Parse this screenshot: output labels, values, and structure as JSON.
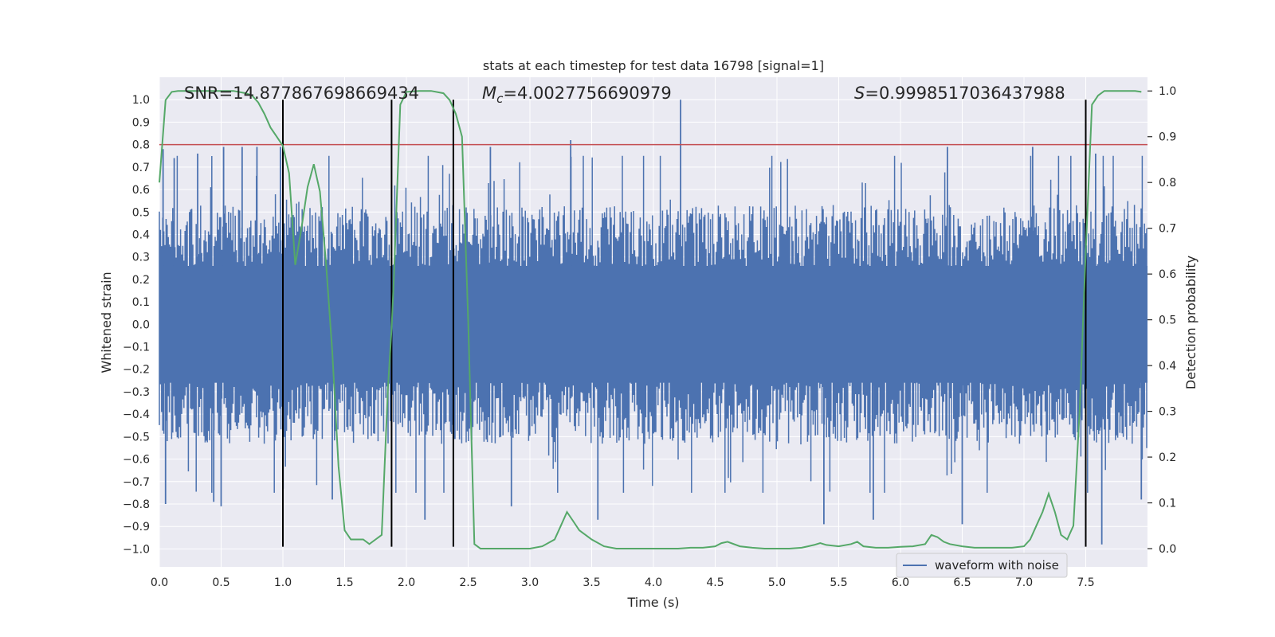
{
  "chart_data": {
    "type": "line",
    "title": "stats at each timestep for test data 16798 [signal=1]",
    "xlabel": "Time (s)",
    "ylabel": "Whitened strain",
    "y2label": "Detection probability",
    "xlim": [
      0.0,
      8.0
    ],
    "ylim": [
      -1.08,
      1.1
    ],
    "y2lim": [
      -0.04,
      1.03
    ],
    "xticks": [
      0.0,
      0.5,
      1.0,
      1.5,
      2.0,
      2.5,
      3.0,
      3.5,
      4.0,
      4.5,
      5.0,
      5.5,
      6.0,
      6.5,
      7.0,
      7.5
    ],
    "xtick_labels": [
      "0.0",
      "0.5",
      "1.0",
      "1.5",
      "2.0",
      "2.5",
      "3.0",
      "3.5",
      "4.0",
      "4.5",
      "5.0",
      "5.5",
      "6.0",
      "6.5",
      "7.0",
      "7.5"
    ],
    "yticks": [
      1.0,
      0.9,
      0.8,
      0.7,
      0.6,
      0.5,
      0.4,
      0.3,
      0.2,
      0.1,
      0.0,
      -0.1,
      -0.2,
      -0.3,
      -0.4,
      -0.5,
      -0.6,
      -0.7,
      -0.8,
      -0.9,
      -1.0
    ],
    "ytick_labels": [
      "1.0",
      "0.9",
      "0.8",
      "0.7",
      "0.6",
      "0.5",
      "0.4",
      "0.3",
      "0.2",
      "0.1",
      "0.0",
      "−0.1",
      "−0.2",
      "−0.3",
      "−0.4",
      "−0.5",
      "−0.6",
      "−0.7",
      "−0.8",
      "−0.9",
      "−1.0"
    ],
    "y2ticks": [
      1.0,
      0.9,
      0.8,
      0.7,
      0.6,
      0.5,
      0.4,
      0.3,
      0.2,
      0.1,
      0.0
    ],
    "y2tick_labels": [
      "1.0",
      "0.9",
      "0.8",
      "0.7",
      "0.6",
      "0.5",
      "0.4",
      "0.3",
      "0.2",
      "0.1",
      "0.0"
    ],
    "annotations": {
      "snr": "SNR=14.877867698669434",
      "mc_symbol": "M",
      "mc_subscript": "c",
      "mc_value": "=4.0027756690979",
      "s_symbol": "S",
      "s_value": "=0.9998517036437988"
    },
    "threshold": {
      "y": 0.8,
      "color": "#c44e52"
    },
    "vlines": [
      1.0,
      1.88,
      2.38,
      7.5
    ],
    "vline_range": [
      -0.99,
      1.0
    ],
    "waveform": {
      "name": "waveform with noise",
      "color": "#4c72b0",
      "x_range": [
        0.0,
        8.0
      ],
      "typical_amplitude": 0.38,
      "spikes": [
        [
          0.03,
          0.78
        ],
        [
          0.12,
          0.74
        ],
        [
          0.31,
          0.76
        ],
        [
          0.52,
          0.79
        ],
        [
          0.67,
          0.79
        ],
        [
          0.79,
          0.79
        ],
        [
          0.98,
          0.79
        ],
        [
          2.68,
          0.79
        ],
        [
          3.33,
          0.82
        ],
        [
          4.22,
          1.0
        ],
        [
          6.38,
          0.79
        ],
        [
          7.07,
          0.79
        ],
        [
          7.58,
          0.76
        ],
        [
          0.05,
          -0.8
        ],
        [
          0.44,
          -0.79
        ],
        [
          0.5,
          -0.81
        ],
        [
          1.4,
          -0.78
        ],
        [
          2.15,
          -0.87
        ],
        [
          2.85,
          -0.81
        ],
        [
          3.55,
          -0.87
        ],
        [
          5.38,
          -0.89
        ],
        [
          5.78,
          -0.87
        ],
        [
          6.5,
          -0.89
        ],
        [
          7.63,
          -0.98
        ],
        [
          7.95,
          -0.78
        ]
      ]
    },
    "probability": {
      "name": "detection probability",
      "color": "#55a868",
      "x": [
        0.0,
        0.05,
        0.1,
        0.15,
        0.2,
        0.3,
        0.4,
        0.5,
        0.6,
        0.7,
        0.75,
        0.8,
        0.85,
        0.9,
        0.95,
        1.0,
        1.05,
        1.1,
        1.15,
        1.2,
        1.25,
        1.3,
        1.35,
        1.4,
        1.45,
        1.5,
        1.55,
        1.6,
        1.65,
        1.7,
        1.75,
        1.8,
        1.85,
        1.88,
        1.9,
        1.95,
        2.0,
        2.1,
        2.2,
        2.3,
        2.35,
        2.4,
        2.45,
        2.5,
        2.55,
        2.6,
        2.7,
        2.8,
        2.9,
        3.0,
        3.1,
        3.2,
        3.25,
        3.3,
        3.35,
        3.4,
        3.45,
        3.5,
        3.6,
        3.7,
        3.8,
        3.9,
        4.0,
        4.1,
        4.2,
        4.3,
        4.4,
        4.5,
        4.55,
        4.6,
        4.7,
        4.8,
        4.9,
        5.0,
        5.1,
        5.2,
        5.3,
        5.35,
        5.4,
        5.5,
        5.6,
        5.65,
        5.7,
        5.8,
        5.9,
        6.0,
        6.1,
        6.2,
        6.25,
        6.3,
        6.35,
        6.4,
        6.5,
        6.6,
        6.7,
        6.8,
        6.9,
        7.0,
        7.05,
        7.1,
        7.15,
        7.2,
        7.25,
        7.3,
        7.35,
        7.4,
        7.45,
        7.5,
        7.55,
        7.6,
        7.65,
        7.7,
        7.8,
        7.9,
        7.95
      ],
      "y": [
        0.8,
        0.98,
        0.998,
        1.0,
        1.0,
        1.0,
        1.0,
        1.0,
        1.0,
        0.995,
        0.99,
        0.975,
        0.95,
        0.92,
        0.9,
        0.88,
        0.82,
        0.62,
        0.7,
        0.79,
        0.84,
        0.78,
        0.62,
        0.43,
        0.18,
        0.04,
        0.02,
        0.02,
        0.02,
        0.01,
        0.02,
        0.03,
        0.35,
        0.48,
        0.6,
        0.97,
        0.998,
        1.0,
        1.0,
        0.995,
        0.98,
        0.95,
        0.9,
        0.5,
        0.01,
        0.0,
        0.0,
        0.0,
        0.0,
        0.0,
        0.005,
        0.02,
        0.05,
        0.08,
        0.06,
        0.04,
        0.03,
        0.02,
        0.005,
        0.0,
        0.0,
        0.0,
        0.0,
        0.0,
        0.0,
        0.002,
        0.002,
        0.005,
        0.012,
        0.015,
        0.005,
        0.002,
        0.0,
        0.0,
        0.0,
        0.002,
        0.008,
        0.012,
        0.008,
        0.005,
        0.01,
        0.015,
        0.005,
        0.002,
        0.002,
        0.004,
        0.005,
        0.01,
        0.03,
        0.025,
        0.015,
        0.01,
        0.005,
        0.002,
        0.002,
        0.002,
        0.002,
        0.005,
        0.02,
        0.05,
        0.08,
        0.12,
        0.08,
        0.03,
        0.02,
        0.05,
        0.3,
        0.65,
        0.97,
        0.99,
        1.0,
        1.0,
        1.0,
        1.0,
        0.998
      ]
    },
    "legend": {
      "entries": [
        "waveform with noise"
      ],
      "location": "lower-right"
    },
    "grid": true,
    "colors": {
      "background": "#eaeaf2",
      "grid": "#ffffff",
      "vline": "#000000",
      "text": "#262626"
    }
  }
}
